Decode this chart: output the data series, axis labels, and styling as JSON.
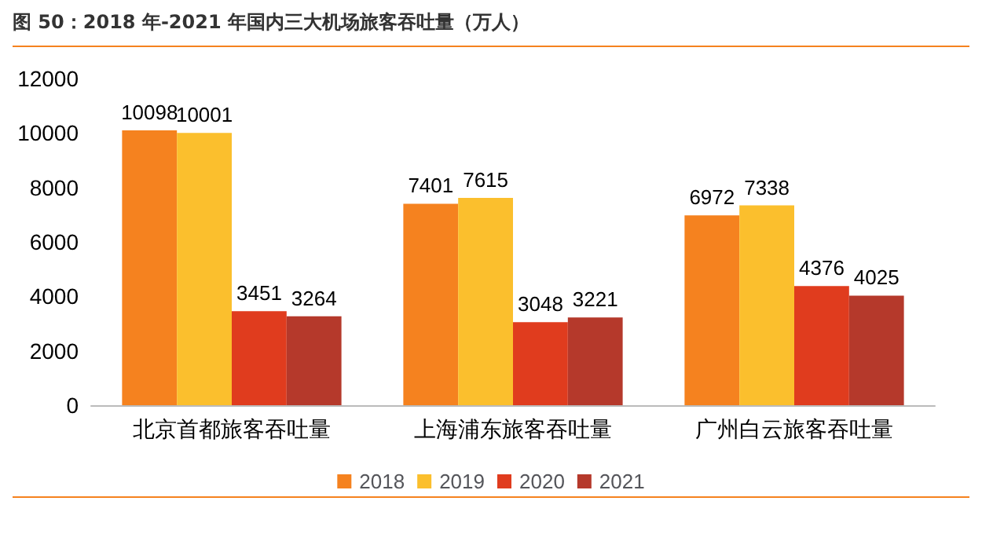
{
  "chart_data": {
    "type": "bar",
    "title": "图 50：2018 年-2021 年国内三大机场旅客吞吐量（万人）",
    "categories": [
      "北京首都旅客吞吐量",
      "上海浦东旅客吞吐量",
      "广州白云旅客吞吐量"
    ],
    "series": [
      {
        "name": "2018",
        "color": "#f5821f",
        "values": [
          10098,
          7401,
          6972
        ]
      },
      {
        "name": "2019",
        "color": "#fbbf2d",
        "values": [
          10001,
          7615,
          7338
        ]
      },
      {
        "name": "2020",
        "color": "#e03c1e",
        "values": [
          3451,
          3048,
          4376
        ]
      },
      {
        "name": "2021",
        "color": "#b5392b",
        "values": [
          3264,
          3221,
          4025
        ]
      }
    ],
    "ylim": [
      0,
      12000
    ],
    "yticks": [
      0,
      2000,
      4000,
      6000,
      8000,
      10000,
      12000
    ],
    "grid": false,
    "legend": "bottom",
    "data_labels": true
  }
}
